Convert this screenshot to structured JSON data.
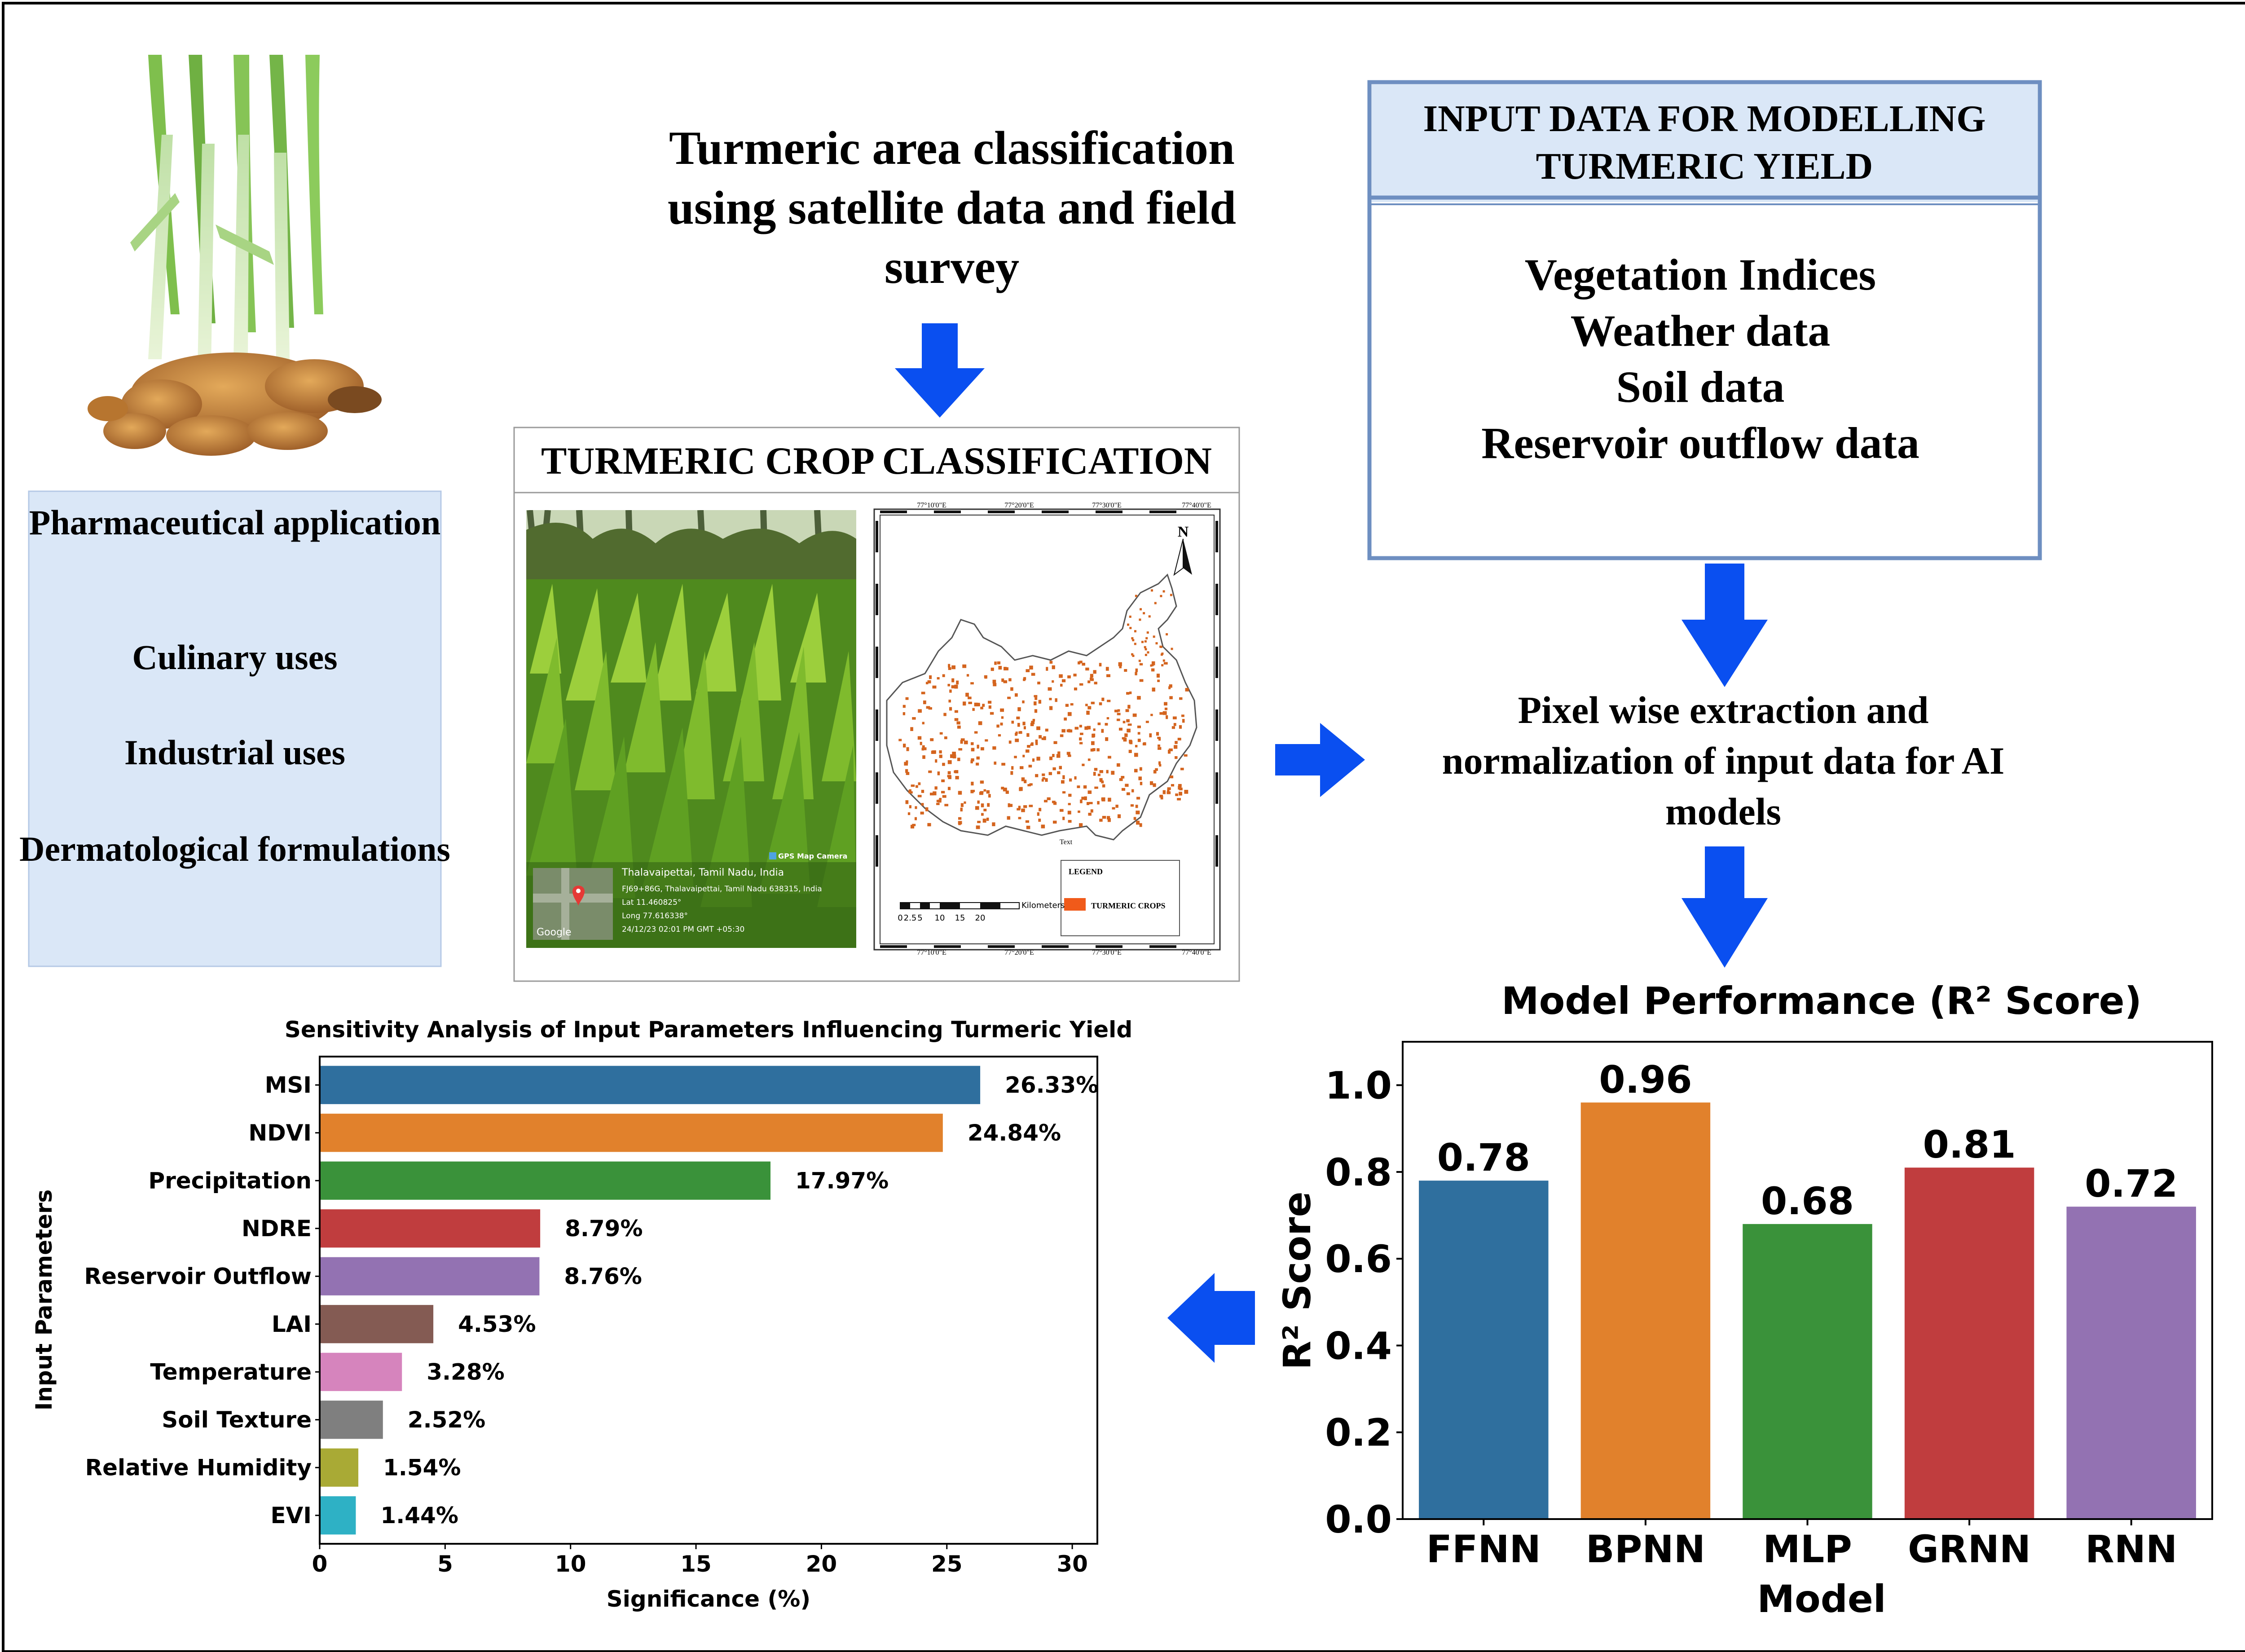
{
  "colors": {
    "arrow": "#0a4ff0",
    "box_fill": "#dae7f7",
    "box_border": "#6e8fc1",
    "series": [
      "#2f6f9e",
      "#e1812c",
      "#3a923a",
      "#c03d3e",
      "#9372b2",
      "#845b53",
      "#d684bd",
      "#7f7f7f",
      "#a9aa35",
      "#2eb1c5"
    ]
  },
  "icons": [
    "turmeric-plant-photo",
    "turmeric-field-photo",
    "district-map",
    "north-arrow-icon",
    "flow-arrow-icon",
    "google-logo",
    "location-pin-icon"
  ],
  "uses_box": {
    "items": [
      "Pharmaceutical application",
      "Culinary uses",
      "Industrial uses",
      "Dermatological formulations"
    ]
  },
  "classification_heading": {
    "lines": [
      "Turmeric area classification",
      "using satellite data and field",
      "survey"
    ]
  },
  "crop_box": {
    "title": "TURMERIC CROP CLASSIFICATION",
    "photo_caption": {
      "app_label": "GPS Map Camera",
      "place": "Thalavaipettai, Tamil Nadu, India",
      "address": "FJ69+86G, Thalavaipettai, Tamil Nadu 638315, India",
      "lat": "Lat 11.460825°",
      "long": "Long 77.616338°",
      "datetime": "24/12/23 02:01 PM GMT +05:30",
      "map_logo": "Google"
    },
    "map": {
      "top_ticks": [
        "77°10'0\"E",
        "77°20'0\"E",
        "77°30'0\"E",
        "77°40'0\"E"
      ],
      "bottom_ticks": [
        "77°10'0\"E",
        "77°20'0\"E",
        "77°30'0\"E",
        "77°40'0\"E"
      ],
      "north": "N",
      "small_label": "Text",
      "legend_title": "LEGEND",
      "legend_item": "TURMERIC CROPS",
      "scale_numbers": [
        "0",
        "2.5",
        "5",
        "10",
        "15",
        "20"
      ],
      "scale_unit": "Kilometers"
    }
  },
  "input_box": {
    "title_lines": [
      "INPUT DATA FOR MODELLING",
      "TURMERIC YIELD"
    ],
    "items": [
      "Vegetation Indices",
      "Weather data",
      "Soil data",
      "Reservoir outflow data"
    ]
  },
  "pixel_step": {
    "lines": [
      "Pixel wise extraction and",
      "normalization of input data for AI",
      "models"
    ]
  },
  "chart_data": [
    {
      "type": "bar",
      "orientation": "horizontal",
      "title": "Sensitivity Analysis of Input Parameters Influencing Turmeric Yield",
      "xlabel": "Significance (%)",
      "ylabel": "Input Parameters",
      "xlim": [
        0,
        31
      ],
      "xticks": [
        0,
        5,
        10,
        15,
        20,
        25,
        30
      ],
      "grid": false,
      "categories": [
        "MSI",
        "NDVI",
        "Precipitation",
        "NDRE",
        "Reservoir Outflow",
        "LAI",
        "Temperature",
        "Soil Texture",
        "Relative Humidity",
        "EVI"
      ],
      "values": [
        26.33,
        24.84,
        17.97,
        8.79,
        8.76,
        4.53,
        3.28,
        2.52,
        1.54,
        1.44
      ],
      "value_labels": [
        "26.33%",
        "24.84%",
        "17.97%",
        "8.79%",
        "8.76%",
        "4.53%",
        "3.28%",
        "2.52%",
        "1.54%",
        "1.44%"
      ]
    },
    {
      "type": "bar",
      "title": "Model Performance (R² Score)",
      "xlabel": "Model",
      "ylabel": "R² Score",
      "ylim": [
        0,
        1.1
      ],
      "yticks": [
        "0.0",
        "0.2",
        "0.4",
        "0.6",
        "0.8",
        "1.0"
      ],
      "grid": false,
      "categories": [
        "FFNN",
        "BPNN",
        "MLP",
        "GRNN",
        "RNN"
      ],
      "values": [
        0.78,
        0.96,
        0.68,
        0.81,
        0.72
      ],
      "value_labels": [
        "0.78",
        "0.96",
        "0.68",
        "0.81",
        "0.72"
      ]
    }
  ]
}
